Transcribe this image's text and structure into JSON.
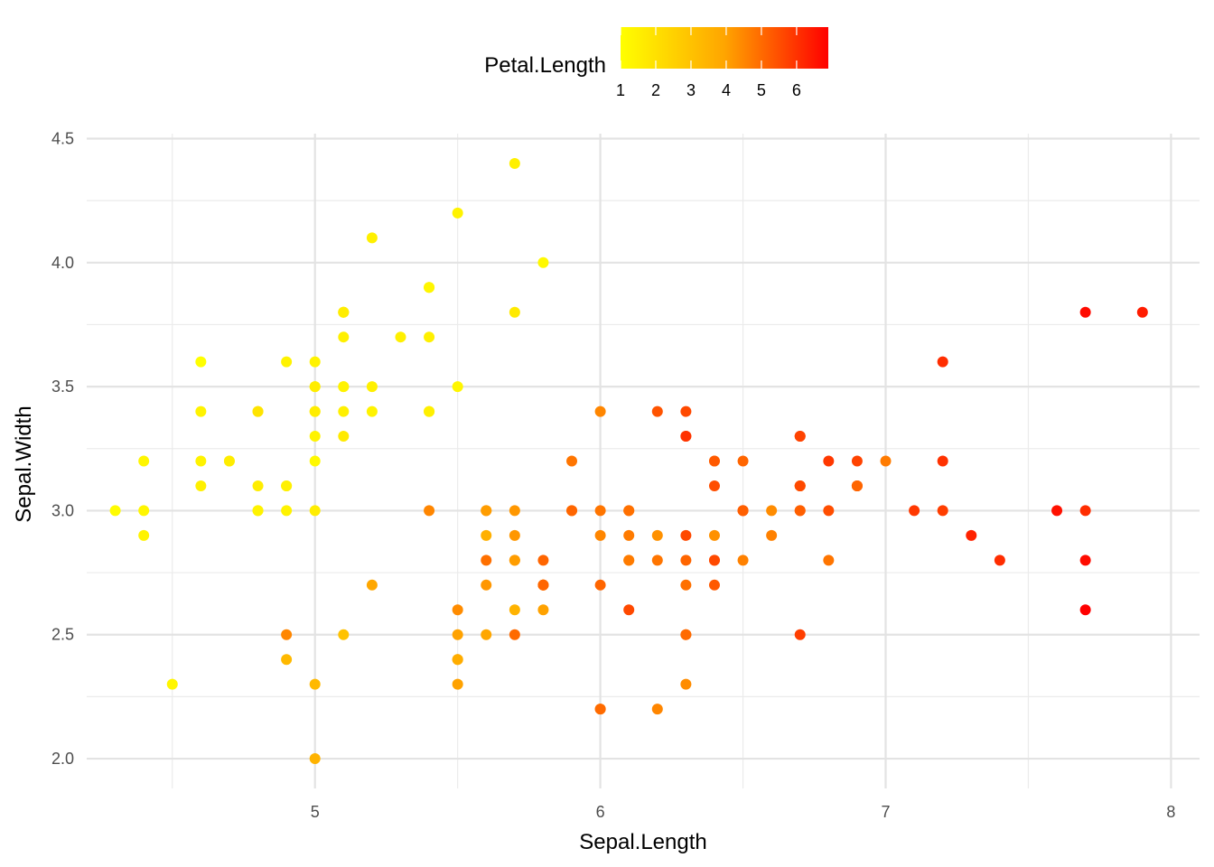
{
  "chart_data": {
    "type": "scatter",
    "title": "",
    "xlabel": "Sepal.Length",
    "ylabel": "Sepal.Width",
    "xlim": [
      4.2,
      8.1
    ],
    "ylim": [
      1.88,
      4.52
    ],
    "x_ticks": [
      5,
      6,
      7,
      8
    ],
    "x_tick_labels": [
      "5",
      "6",
      "7",
      "8"
    ],
    "y_ticks": [
      2.0,
      2.5,
      3.0,
      3.5,
      4.0,
      4.5
    ],
    "y_tick_labels": [
      "2.0",
      "2.5",
      "3.0",
      "3.5",
      "4.0",
      "4.5"
    ],
    "grid": true,
    "legend": {
      "title": "Petal.Length",
      "placement": "top",
      "type": "colorbar",
      "range": [
        1.0,
        6.9
      ],
      "ticks": [
        1,
        2,
        3,
        4,
        5,
        6
      ],
      "tick_labels": [
        "1",
        "2",
        "3",
        "4",
        "5",
        "6"
      ],
      "low_color": "#ffff00",
      "high_color": "#ff0000"
    },
    "color_variable": "Petal.Length",
    "points": [
      {
        "x": 5.1,
        "y": 3.5,
        "c": 1.4
      },
      {
        "x": 4.9,
        "y": 3.0,
        "c": 1.4
      },
      {
        "x": 4.7,
        "y": 3.2,
        "c": 1.3
      },
      {
        "x": 4.6,
        "y": 3.1,
        "c": 1.5
      },
      {
        "x": 5.0,
        "y": 3.6,
        "c": 1.4
      },
      {
        "x": 5.4,
        "y": 3.9,
        "c": 1.7
      },
      {
        "x": 4.6,
        "y": 3.4,
        "c": 1.4
      },
      {
        "x": 5.0,
        "y": 3.4,
        "c": 1.5
      },
      {
        "x": 4.4,
        "y": 2.9,
        "c": 1.4
      },
      {
        "x": 4.9,
        "y": 3.1,
        "c": 1.5
      },
      {
        "x": 5.4,
        "y": 3.7,
        "c": 1.5
      },
      {
        "x": 4.8,
        "y": 3.4,
        "c": 1.6
      },
      {
        "x": 4.8,
        "y": 3.0,
        "c": 1.4
      },
      {
        "x": 4.3,
        "y": 3.0,
        "c": 1.1
      },
      {
        "x": 5.8,
        "y": 4.0,
        "c": 1.2
      },
      {
        "x": 5.7,
        "y": 4.4,
        "c": 1.5
      },
      {
        "x": 5.4,
        "y": 3.9,
        "c": 1.3
      },
      {
        "x": 5.1,
        "y": 3.5,
        "c": 1.4
      },
      {
        "x": 5.7,
        "y": 3.8,
        "c": 1.7
      },
      {
        "x": 5.1,
        "y": 3.8,
        "c": 1.5
      },
      {
        "x": 5.4,
        "y": 3.4,
        "c": 1.7
      },
      {
        "x": 5.1,
        "y": 3.7,
        "c": 1.5
      },
      {
        "x": 4.6,
        "y": 3.6,
        "c": 1.0
      },
      {
        "x": 5.1,
        "y": 3.3,
        "c": 1.7
      },
      {
        "x": 4.8,
        "y": 3.4,
        "c": 1.9
      },
      {
        "x": 5.0,
        "y": 3.0,
        "c": 1.6
      },
      {
        "x": 5.0,
        "y": 3.4,
        "c": 1.6
      },
      {
        "x": 5.2,
        "y": 3.5,
        "c": 1.5
      },
      {
        "x": 5.2,
        "y": 3.4,
        "c": 1.4
      },
      {
        "x": 4.7,
        "y": 3.2,
        "c": 1.6
      },
      {
        "x": 4.8,
        "y": 3.1,
        "c": 1.6
      },
      {
        "x": 5.4,
        "y": 3.4,
        "c": 1.5
      },
      {
        "x": 5.2,
        "y": 4.1,
        "c": 1.5
      },
      {
        "x": 5.5,
        "y": 4.2,
        "c": 1.4
      },
      {
        "x": 4.9,
        "y": 3.1,
        "c": 1.5
      },
      {
        "x": 5.0,
        "y": 3.2,
        "c": 1.2
      },
      {
        "x": 5.5,
        "y": 3.5,
        "c": 1.3
      },
      {
        "x": 4.9,
        "y": 3.6,
        "c": 1.4
      },
      {
        "x": 4.4,
        "y": 3.0,
        "c": 1.3
      },
      {
        "x": 5.1,
        "y": 3.4,
        "c": 1.5
      },
      {
        "x": 5.0,
        "y": 3.5,
        "c": 1.3
      },
      {
        "x": 4.5,
        "y": 2.3,
        "c": 1.3
      },
      {
        "x": 4.4,
        "y": 3.2,
        "c": 1.3
      },
      {
        "x": 5.0,
        "y": 3.5,
        "c": 1.6
      },
      {
        "x": 5.1,
        "y": 3.8,
        "c": 1.9
      },
      {
        "x": 4.8,
        "y": 3.0,
        "c": 1.4
      },
      {
        "x": 5.1,
        "y": 3.8,
        "c": 1.6
      },
      {
        "x": 4.6,
        "y": 3.2,
        "c": 1.4
      },
      {
        "x": 5.3,
        "y": 3.7,
        "c": 1.5
      },
      {
        "x": 5.0,
        "y": 3.3,
        "c": 1.4
      },
      {
        "x": 7.0,
        "y": 3.2,
        "c": 4.7
      },
      {
        "x": 6.4,
        "y": 3.2,
        "c": 4.5
      },
      {
        "x": 6.9,
        "y": 3.1,
        "c": 4.9
      },
      {
        "x": 5.5,
        "y": 2.3,
        "c": 4.0
      },
      {
        "x": 6.5,
        "y": 2.8,
        "c": 4.6
      },
      {
        "x": 5.7,
        "y": 2.8,
        "c": 4.5
      },
      {
        "x": 6.3,
        "y": 3.3,
        "c": 4.7
      },
      {
        "x": 4.9,
        "y": 2.4,
        "c": 3.3
      },
      {
        "x": 6.6,
        "y": 2.9,
        "c": 4.6
      },
      {
        "x": 5.2,
        "y": 2.7,
        "c": 3.9
      },
      {
        "x": 5.0,
        "y": 2.0,
        "c": 3.5
      },
      {
        "x": 5.9,
        "y": 3.0,
        "c": 4.2
      },
      {
        "x": 6.0,
        "y": 2.2,
        "c": 4.0
      },
      {
        "x": 6.1,
        "y": 2.9,
        "c": 4.7
      },
      {
        "x": 5.6,
        "y": 2.9,
        "c": 3.6
      },
      {
        "x": 6.7,
        "y": 3.1,
        "c": 4.4
      },
      {
        "x": 5.6,
        "y": 3.0,
        "c": 4.5
      },
      {
        "x": 5.8,
        "y": 2.7,
        "c": 4.1
      },
      {
        "x": 6.2,
        "y": 2.2,
        "c": 4.5
      },
      {
        "x": 5.6,
        "y": 2.5,
        "c": 3.9
      },
      {
        "x": 5.9,
        "y": 3.2,
        "c": 4.8
      },
      {
        "x": 6.1,
        "y": 2.8,
        "c": 4.0
      },
      {
        "x": 6.3,
        "y": 2.5,
        "c": 4.9
      },
      {
        "x": 6.1,
        "y": 2.8,
        "c": 4.7
      },
      {
        "x": 6.4,
        "y": 2.9,
        "c": 4.3
      },
      {
        "x": 6.6,
        "y": 3.0,
        "c": 4.4
      },
      {
        "x": 6.8,
        "y": 2.8,
        "c": 4.8
      },
      {
        "x": 6.7,
        "y": 3.0,
        "c": 5.0
      },
      {
        "x": 6.0,
        "y": 2.9,
        "c": 4.5
      },
      {
        "x": 5.7,
        "y": 2.6,
        "c": 3.5
      },
      {
        "x": 5.5,
        "y": 2.4,
        "c": 3.8
      },
      {
        "x": 5.5,
        "y": 2.4,
        "c": 3.7
      },
      {
        "x": 5.8,
        "y": 2.7,
        "c": 3.9
      },
      {
        "x": 6.0,
        "y": 2.7,
        "c": 5.1
      },
      {
        "x": 5.4,
        "y": 3.0,
        "c": 4.5
      },
      {
        "x": 6.0,
        "y": 3.4,
        "c": 4.5
      },
      {
        "x": 6.7,
        "y": 3.1,
        "c": 4.7
      },
      {
        "x": 6.3,
        "y": 2.3,
        "c": 4.4
      },
      {
        "x": 5.6,
        "y": 3.0,
        "c": 4.1
      },
      {
        "x": 5.5,
        "y": 2.5,
        "c": 4.0
      },
      {
        "x": 5.5,
        "y": 2.6,
        "c": 4.4
      },
      {
        "x": 6.1,
        "y": 3.0,
        "c": 4.6
      },
      {
        "x": 5.8,
        "y": 2.6,
        "c": 4.0
      },
      {
        "x": 5.0,
        "y": 2.3,
        "c": 3.3
      },
      {
        "x": 5.6,
        "y": 2.7,
        "c": 4.2
      },
      {
        "x": 5.7,
        "y": 3.0,
        "c": 4.2
      },
      {
        "x": 5.7,
        "y": 2.9,
        "c": 4.2
      },
      {
        "x": 6.2,
        "y": 2.9,
        "c": 4.3
      },
      {
        "x": 5.1,
        "y": 2.5,
        "c": 3.0
      },
      {
        "x": 5.7,
        "y": 2.8,
        "c": 4.1
      },
      {
        "x": 6.3,
        "y": 3.3,
        "c": 6.0
      },
      {
        "x": 5.8,
        "y": 2.7,
        "c": 5.1
      },
      {
        "x": 7.1,
        "y": 3.0,
        "c": 5.9
      },
      {
        "x": 6.3,
        "y": 2.9,
        "c": 5.6
      },
      {
        "x": 6.5,
        "y": 3.0,
        "c": 5.8
      },
      {
        "x": 7.6,
        "y": 3.0,
        "c": 6.6
      },
      {
        "x": 4.9,
        "y": 2.5,
        "c": 4.5
      },
      {
        "x": 7.3,
        "y": 2.9,
        "c": 6.3
      },
      {
        "x": 6.7,
        "y": 2.5,
        "c": 5.8
      },
      {
        "x": 7.2,
        "y": 3.6,
        "c": 6.1
      },
      {
        "x": 6.5,
        "y": 3.2,
        "c": 5.1
      },
      {
        "x": 6.4,
        "y": 2.7,
        "c": 5.3
      },
      {
        "x": 6.8,
        "y": 3.0,
        "c": 5.5
      },
      {
        "x": 5.7,
        "y": 2.5,
        "c": 5.0
      },
      {
        "x": 5.8,
        "y": 2.8,
        "c": 5.1
      },
      {
        "x": 6.4,
        "y": 3.2,
        "c": 5.3
      },
      {
        "x": 6.5,
        "y": 3.0,
        "c": 5.5
      },
      {
        "x": 7.7,
        "y": 3.8,
        "c": 6.7
      },
      {
        "x": 7.7,
        "y": 2.6,
        "c": 6.9
      },
      {
        "x": 6.0,
        "y": 2.2,
        "c": 5.0
      },
      {
        "x": 6.9,
        "y": 3.2,
        "c": 5.7
      },
      {
        "x": 5.6,
        "y": 2.8,
        "c": 4.9
      },
      {
        "x": 7.7,
        "y": 2.8,
        "c": 6.7
      },
      {
        "x": 6.3,
        "y": 2.7,
        "c": 4.9
      },
      {
        "x": 6.7,
        "y": 3.3,
        "c": 5.7
      },
      {
        "x": 7.2,
        "y": 3.2,
        "c": 6.0
      },
      {
        "x": 6.2,
        "y": 2.8,
        "c": 4.8
      },
      {
        "x": 6.1,
        "y": 3.0,
        "c": 4.9
      },
      {
        "x": 6.4,
        "y": 2.8,
        "c": 5.6
      },
      {
        "x": 7.2,
        "y": 3.0,
        "c": 5.8
      },
      {
        "x": 7.4,
        "y": 2.8,
        "c": 6.1
      },
      {
        "x": 7.9,
        "y": 3.8,
        "c": 6.4
      },
      {
        "x": 6.4,
        "y": 2.8,
        "c": 5.6
      },
      {
        "x": 6.3,
        "y": 2.8,
        "c": 5.1
      },
      {
        "x": 6.1,
        "y": 2.6,
        "c": 5.6
      },
      {
        "x": 7.7,
        "y": 3.0,
        "c": 6.1
      },
      {
        "x": 6.3,
        "y": 3.4,
        "c": 5.6
      },
      {
        "x": 6.4,
        "y": 3.1,
        "c": 5.5
      },
      {
        "x": 6.0,
        "y": 3.0,
        "c": 4.8
      },
      {
        "x": 6.9,
        "y": 3.1,
        "c": 5.4
      },
      {
        "x": 6.7,
        "y": 3.1,
        "c": 5.6
      },
      {
        "x": 6.9,
        "y": 3.1,
        "c": 5.1
      },
      {
        "x": 5.8,
        "y": 2.7,
        "c": 5.1
      },
      {
        "x": 6.8,
        "y": 3.2,
        "c": 5.9
      },
      {
        "x": 6.7,
        "y": 3.3,
        "c": 5.7
      },
      {
        "x": 6.7,
        "y": 3.0,
        "c": 5.2
      },
      {
        "x": 6.3,
        "y": 2.5,
        "c": 5.0
      },
      {
        "x": 6.5,
        "y": 3.0,
        "c": 5.2
      },
      {
        "x": 6.2,
        "y": 3.4,
        "c": 5.4
      },
      {
        "x": 5.9,
        "y": 3.0,
        "c": 5.1
      }
    ]
  }
}
